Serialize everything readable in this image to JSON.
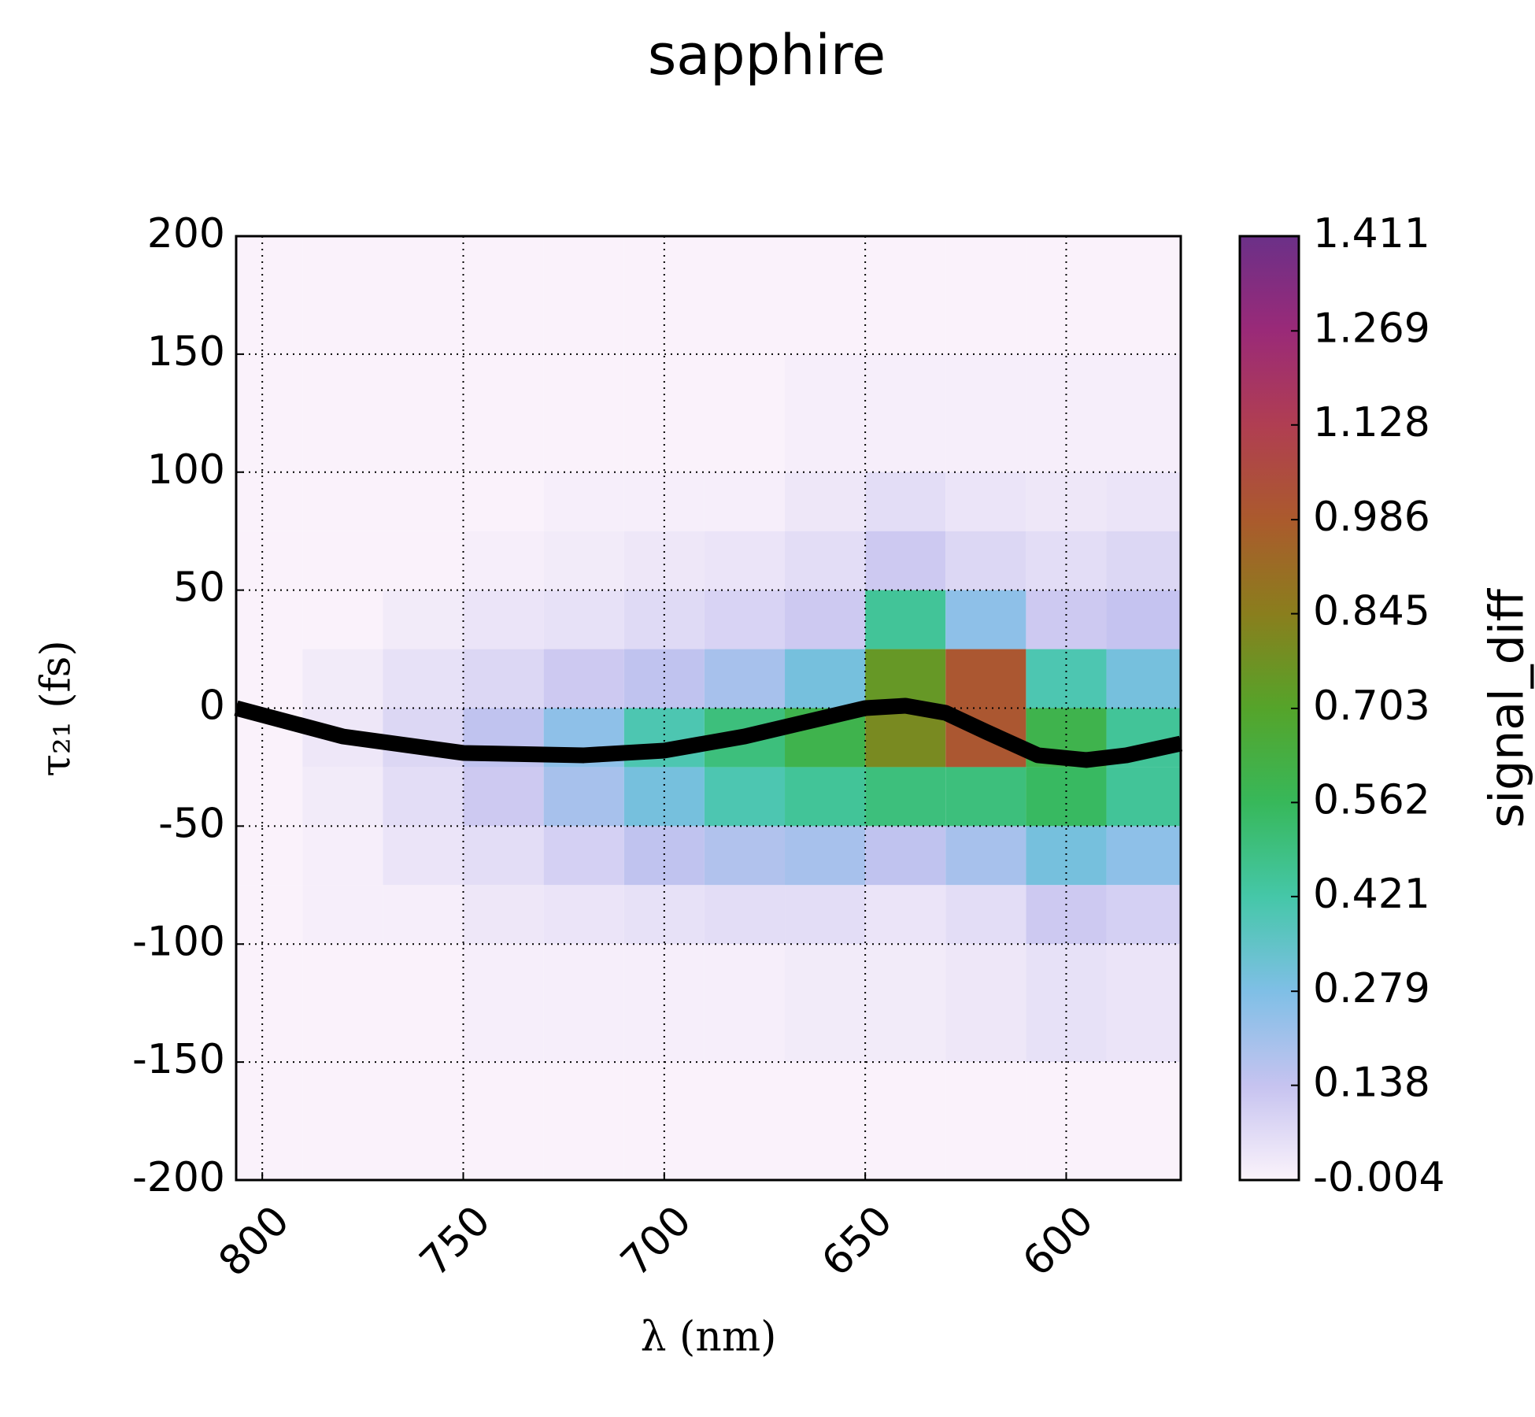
{
  "chart_data": {
    "type": "heatmap",
    "title": "sapphire",
    "xlabel": "λ (nm)",
    "ylabel": "τ₂₁ (fs)",
    "colorbar_label": "signal_diff",
    "x_edges": [
      806.5,
      790,
      770,
      750,
      730,
      710,
      690,
      670,
      650,
      630,
      610,
      590,
      571.5
    ],
    "y_edges": [
      200,
      150,
      100,
      75,
      50,
      25,
      0,
      -25,
      -50,
      -75,
      -100,
      -150,
      -200
    ],
    "z": [
      [
        0,
        0,
        0,
        0,
        0,
        0,
        0,
        0,
        0,
        0,
        0,
        0
      ],
      [
        0,
        0,
        0,
        0,
        0,
        0,
        0,
        0.01,
        0.01,
        0.01,
        0.01,
        0.01
      ],
      [
        0,
        0,
        0,
        0,
        0.01,
        0.01,
        0.01,
        0.03,
        0.06,
        0.04,
        0.03,
        0.04
      ],
      [
        0,
        0,
        0,
        0.01,
        0.02,
        0.03,
        0.04,
        0.06,
        0.12,
        0.08,
        0.06,
        0.08
      ],
      [
        0,
        0,
        0.02,
        0.04,
        0.05,
        0.07,
        0.09,
        0.12,
        0.45,
        0.25,
        0.12,
        0.14
      ],
      [
        0,
        0.02,
        0.05,
        0.08,
        0.12,
        0.15,
        0.2,
        0.3,
        0.75,
        1.0,
        0.4,
        0.3
      ],
      [
        0,
        0.03,
        0.08,
        0.15,
        0.25,
        0.4,
        0.5,
        0.6,
        0.8,
        1.0,
        0.6,
        0.45
      ],
      [
        0,
        0.02,
        0.06,
        0.12,
        0.2,
        0.3,
        0.4,
        0.45,
        0.5,
        0.5,
        0.55,
        0.45
      ],
      [
        0,
        0.01,
        0.04,
        0.06,
        0.1,
        0.15,
        0.18,
        0.2,
        0.15,
        0.2,
        0.3,
        0.25
      ],
      [
        0,
        0.01,
        0.01,
        0.03,
        0.04,
        0.05,
        0.06,
        0.06,
        0.04,
        0.06,
        0.12,
        0.1
      ],
      [
        0,
        0,
        0,
        0.01,
        0.01,
        0.01,
        0.01,
        0.02,
        0.02,
        0.03,
        0.05,
        0.04
      ],
      [
        0,
        0,
        0,
        0,
        0,
        0,
        0,
        0,
        0,
        0,
        0,
        0
      ]
    ],
    "series": [
      {
        "color": "#000000",
        "x": [
          806.5,
          780,
          750,
          720,
          700,
          680,
          660,
          650,
          640,
          630,
          620,
          607,
          595,
          585,
          571.5
        ],
        "values": [
          0,
          -12,
          -19,
          -20,
          -18,
          -12,
          -4,
          0,
          1,
          -2,
          -10,
          -20,
          -22,
          -20,
          -15
        ]
      }
    ],
    "xlim": [
      806.5,
      571.5
    ],
    "xticks": [
      800,
      750,
      700,
      650,
      600
    ],
    "ylim": [
      -200,
      200
    ],
    "yticks": [
      -200,
      -150,
      -100,
      -50,
      0,
      50,
      100,
      150,
      200
    ],
    "clim": [
      -0.004,
      1.411
    ],
    "cticks": [
      -0.004,
      0.138,
      0.279,
      0.421,
      0.562,
      0.703,
      0.845,
      0.986,
      1.128,
      1.269,
      1.411
    ],
    "colormap": [
      "#fbf3fb",
      "#c6c3f0",
      "#7fbfe6",
      "#45c7a8",
      "#37b85a",
      "#55a42a",
      "#8a7e1d",
      "#ab5a2d",
      "#b03e52",
      "#9a2a78",
      "#6b3088"
    ],
    "grid": true
  }
}
